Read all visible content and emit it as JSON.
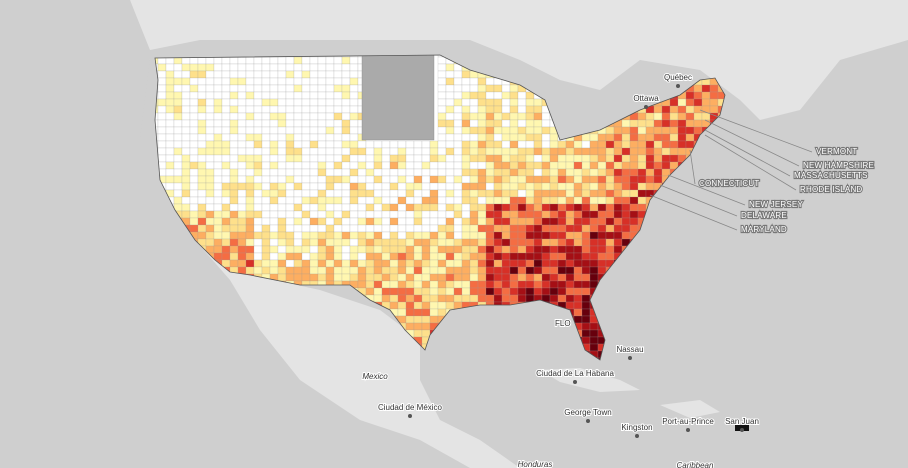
{
  "map": {
    "state_labels": [
      "VERMONT",
      "NEW HAMPSHIRE",
      "MASSACHUSETTS",
      "RHODE ISLAND",
      "CONNECTICUT",
      "NEW JERSEY",
      "DELAWARE",
      "MARYLAND"
    ],
    "place_labels": [
      "Québec",
      "Ottawa",
      "Mexico",
      "Ciudad de México",
      "Ciudad de La Habana",
      "Nassau",
      "George Town",
      "Port-au-Prince",
      "San Juan",
      "Kingston",
      "FLO",
      "Honduras",
      "Caribbean"
    ]
  }
}
